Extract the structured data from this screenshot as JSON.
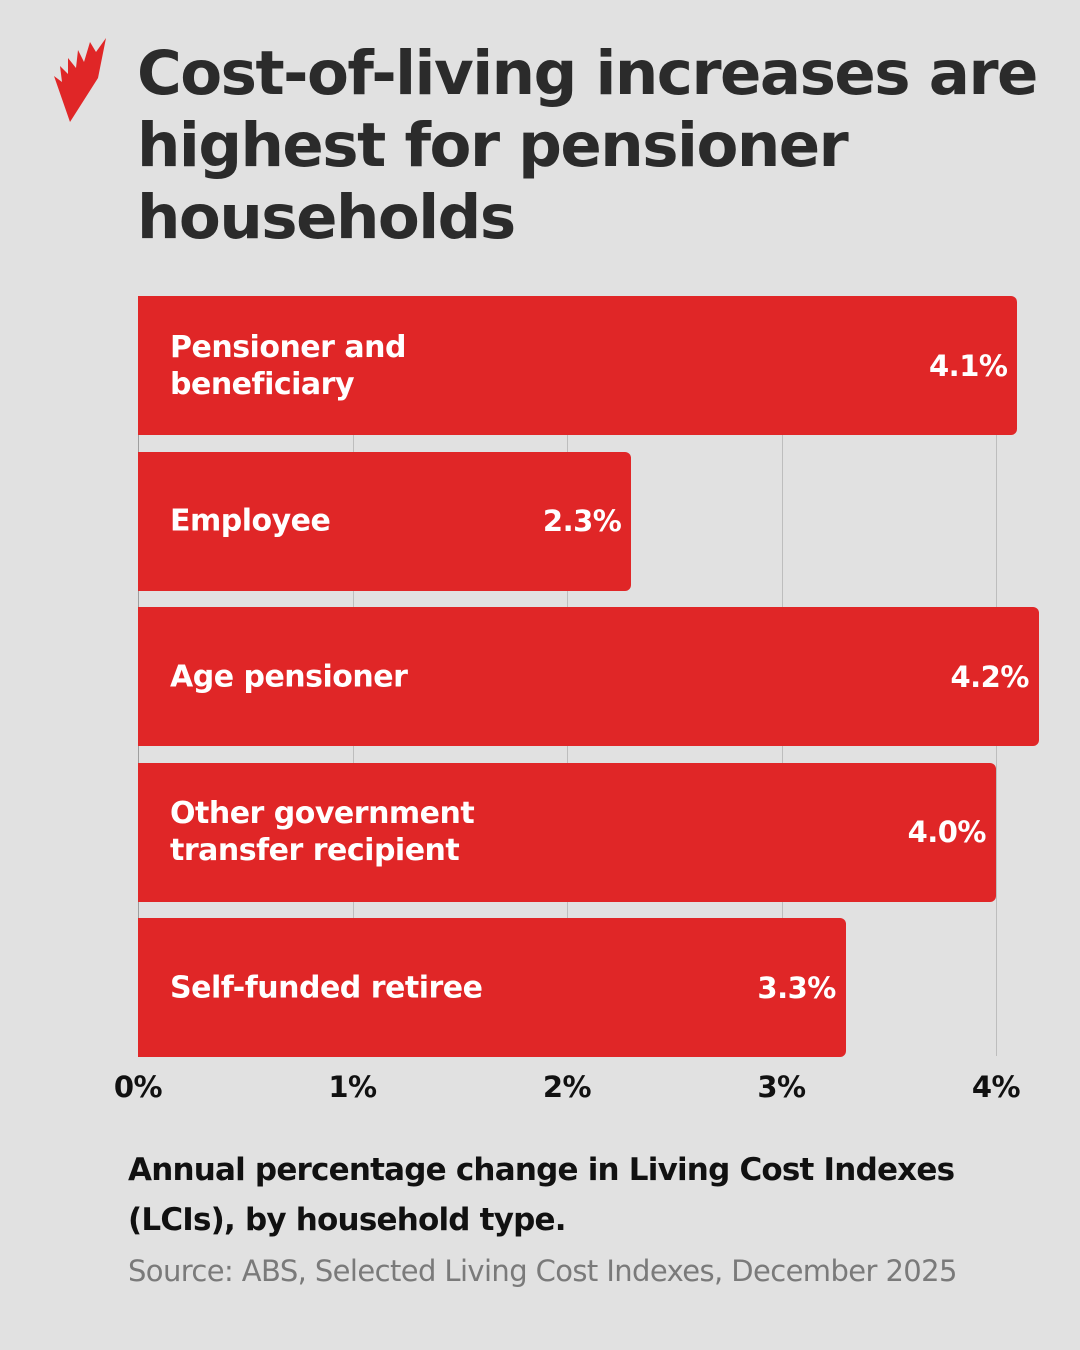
{
  "brand": {
    "logo": "sbs-flame-logo",
    "accent_color": "#e02627"
  },
  "title": "Cost-of-living increases are highest for pensioner households",
  "caption": "Annual percentage change in Living Cost Indexes (LCIs), by household type.",
  "source": "Source: ABS, Selected Living Cost Indexes, December 2025",
  "axis": {
    "ticks": [
      "0%",
      "1%",
      "2%",
      "3%",
      "4%"
    ]
  },
  "bars": [
    {
      "label": "Pensioner and\nbeneficiary",
      "value": 4.1,
      "value_label": "4.1%"
    },
    {
      "label": "Employee",
      "value": 2.3,
      "value_label": "2.3%"
    },
    {
      "label": "Age pensioner",
      "value": 4.2,
      "value_label": "4.2%"
    },
    {
      "label": "Other government\ntransfer recipient",
      "value": 4.0,
      "value_label": "4.0%"
    },
    {
      "label": "Self-funded retiree",
      "value": 3.3,
      "value_label": "3.3%"
    }
  ],
  "chart_data": {
    "type": "bar",
    "orientation": "horizontal",
    "title": "Cost-of-living increases are highest for pensioner households",
    "subtitle": "Annual percentage change in Living Cost Indexes (LCIs), by household type.",
    "categories": [
      "Pensioner and beneficiary",
      "Employee",
      "Age pensioner",
      "Other government transfer recipient",
      "Self-funded retiree"
    ],
    "values": [
      4.1,
      2.3,
      4.2,
      4.0,
      3.3
    ],
    "xlabel": "",
    "ylabel": "",
    "xlim": [
      0,
      4.2
    ],
    "x_ticks": [
      "0%",
      "1%",
      "2%",
      "3%",
      "4%"
    ],
    "grid": true,
    "legend": "none",
    "bar_color": "#e02627",
    "data_labels": [
      "4.1%",
      "2.3%",
      "4.2%",
      "4.0%",
      "3.3%"
    ],
    "source": "Source: ABS, Selected Living Cost Indexes, December 2025"
  }
}
